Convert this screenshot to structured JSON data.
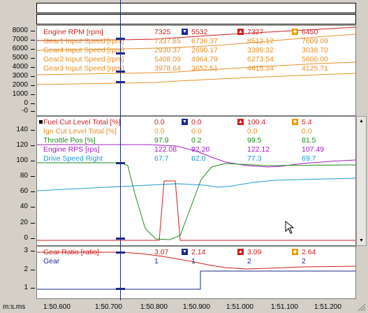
{
  "xaxis": {
    "unit": "m:s.ms",
    "ticks": [
      "1:50.600",
      "1:50.700",
      "1:50.800",
      "1:50.900",
      "1:51.000",
      "1:51.100",
      "1:51.200"
    ]
  },
  "pane1": {
    "yticks": [
      "8000",
      "7000",
      "6000",
      "5000",
      "4000",
      "3000",
      "2000",
      "1000",
      "0",
      "-0"
    ],
    "channels": [
      {
        "name": "Engine RPM [rpm]",
        "cur": "7325",
        "min": "5532",
        "max": "7327",
        "avg": "6450",
        "color": "#cc1f1f"
      },
      {
        "name": "Gear1 Input Speed [rpm]",
        "cur": "7337.85",
        "min": "6736.37",
        "max": "8512.12",
        "avg": "7609.09",
        "color": "#e8902a"
      },
      {
        "name": "Gear4 Input Speed [rpm]",
        "cur": "2930.37",
        "min": "2690.17",
        "max": "3399.32",
        "avg": "3038.70",
        "color": "#e8902a"
      },
      {
        "name": "Gear2 Input Speed [rpm]",
        "cur": "5408.09",
        "min": "4964.79",
        "max": "6273.54",
        "avg": "5608.00",
        "color": "#e8902a"
      },
      {
        "name": "Gear3 Input Speed [rpm]",
        "cur": "3978.64",
        "min": "3652.51",
        "max": "4615.34",
        "avg": "4125.71",
        "color": "#e8902a"
      }
    ]
  },
  "pane2": {
    "yticks": [
      "140",
      "120",
      "100",
      "80",
      "60",
      "40",
      "20",
      "0"
    ],
    "channels": [
      {
        "name": "Fuel Cut Level Total [%]",
        "cur": "0.0",
        "min": "0.0",
        "max": "100.4",
        "avg": "5.4",
        "color": "#cc1f1f"
      },
      {
        "name": "Ign Cut Level Total [%]",
        "cur": "0.0",
        "min": "0.0",
        "max": "0.0",
        "avg": "0.0",
        "color": "#e8902a"
      },
      {
        "name": "Throttle Pos [%]",
        "cur": "97.9",
        "min": "0.2",
        "max": "99.5",
        "avg": "81.5",
        "color": "#1e8a1e"
      },
      {
        "name": "Engine RPS [rps]",
        "cur": "122.08",
        "min": "92.20",
        "max": "122.12",
        "avg": "107.49",
        "color": "#a020c0"
      },
      {
        "name": "Drive Speed Right",
        "cur": "67.7",
        "min": "62.0",
        "max": "77.3",
        "avg": "69.7",
        "color": "#1e9ad6"
      }
    ]
  },
  "pane3": {
    "yticks": [
      "3",
      "2",
      "1"
    ],
    "channels": [
      {
        "name": "Gear Ratio [ratio]",
        "cur": "3.07",
        "min": "2.14",
        "max": "3.09",
        "avg": "2.64",
        "color": "#cc1f1f"
      },
      {
        "name": "Gear",
        "cur": "1",
        "min": "1",
        "max": "2",
        "avg": "2",
        "color": "#1a2a8c"
      }
    ]
  },
  "markers": {
    "min": "▼",
    "max": "▲",
    "avg": "◆"
  }
}
